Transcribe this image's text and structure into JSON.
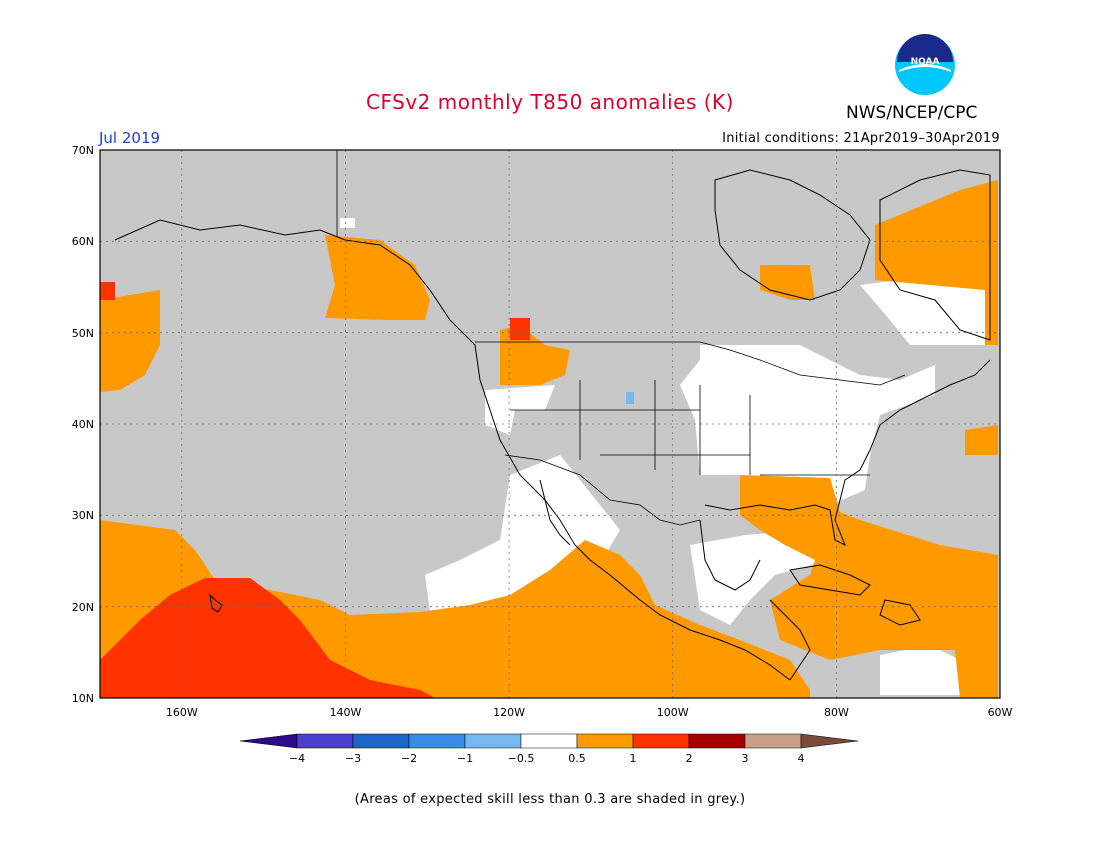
{
  "header": {
    "title": "CFSv2 monthly T850 anomalies (K)",
    "agency": "NWS/NCEP/CPC",
    "logo_text": "NOAA",
    "month": "Jul 2019",
    "initial_conditions": "Initial conditions: 21Apr2019–30Apr2019"
  },
  "map": {
    "lon_range": [
      -170,
      -60
    ],
    "lat_range": [
      10,
      70
    ],
    "lat_ticks": [
      "70N",
      "60N",
      "50N",
      "40N",
      "30N",
      "20N",
      "10N"
    ],
    "lon_ticks": [
      "160W",
      "140W",
      "120W",
      "100W",
      "80W",
      "60W"
    ],
    "skill_mask_color": "#c8c8c8"
  },
  "colorbar": {
    "labels": [
      "−4",
      "−3",
      "−2",
      "−1",
      "−0.5",
      "0.5",
      "1",
      "2",
      "3",
      "4"
    ],
    "colors": [
      "#2c0a8c",
      "#4b3fcf",
      "#1c64c8",
      "#3a8ae8",
      "#78b8f0",
      "#ffffff",
      "#ff9900",
      "#ff3300",
      "#a50000",
      "#c8a08a",
      "#7a4a3a"
    ]
  },
  "footnote": "(Areas of expected skill less than 0.3 are shaded in grey.)"
}
